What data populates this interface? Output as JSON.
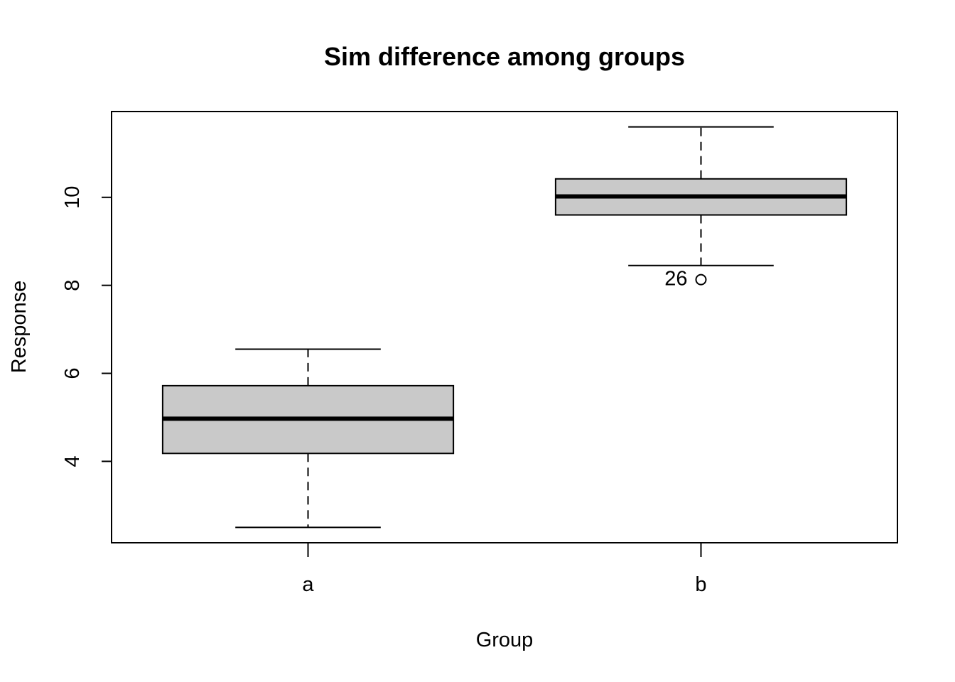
{
  "chart_data": {
    "type": "boxplot",
    "title": "Sim difference among groups",
    "xlabel": "Group",
    "ylabel": "Response",
    "ylim": [
      2.15,
      11.95
    ],
    "yticks": [
      4,
      6,
      8,
      10
    ],
    "categories": [
      "a",
      "b"
    ],
    "groups": [
      {
        "name": "a",
        "whisker_low": 2.5,
        "q1": 4.18,
        "median": 4.97,
        "q3": 5.72,
        "whisker_high": 6.55,
        "outliers": []
      },
      {
        "name": "b",
        "whisker_low": 8.45,
        "q1": 9.6,
        "median": 10.02,
        "q3": 10.42,
        "whisker_high": 11.6,
        "outliers": [
          {
            "value": 8.13,
            "label": "26"
          }
        ]
      }
    ],
    "box_fill": "#c9c9c9",
    "line_color": "#000000",
    "grid": false,
    "legend": "none"
  }
}
